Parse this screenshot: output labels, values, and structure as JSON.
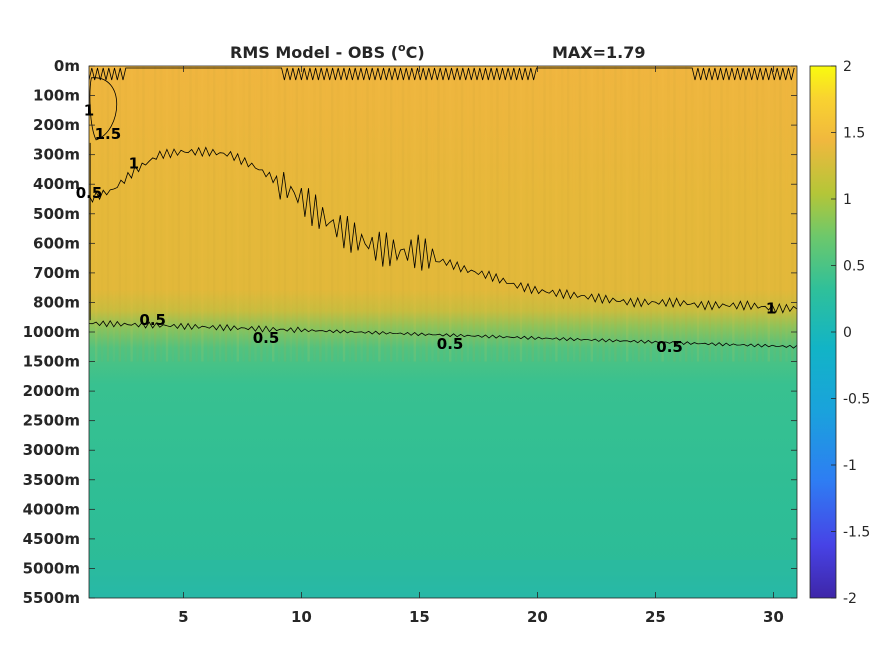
{
  "chart_data": {
    "type": "heatmap",
    "title": "RMS Model - OBS (°C)",
    "title_main": "RMS Model - OBS (",
    "title_sup": "o",
    "title_unit_tail": "C)",
    "max_label": "MAX=1.79",
    "y_ticks": [
      "0m",
      "100m",
      "200m",
      "300m",
      "400m",
      "500m",
      "600m",
      "700m",
      "800m",
      "1000m",
      "1500m",
      "2000m",
      "2500m",
      "3000m",
      "3500m",
      "4000m",
      "4500m",
      "5000m",
      "5500m"
    ],
    "x_ticks": [
      5,
      10,
      15,
      20,
      25,
      30
    ],
    "xlim": [
      1,
      31
    ],
    "colorbar": {
      "min": -2,
      "max": 2,
      "ticks": [
        "2",
        "1.5",
        "1",
        "0.5",
        "0",
        "-0.5",
        "-1",
        "-1.5",
        "-2"
      ],
      "colormap": "parula"
    },
    "contour_levels": [
      0.5,
      1,
      1.5
    ],
    "contour_labels": [
      {
        "text": "0.5",
        "x": 3.7,
        "depth_index": 8.6
      },
      {
        "text": "0.5",
        "x": 8.5,
        "depth_index": 9.2
      },
      {
        "text": "0.5",
        "x": 16.3,
        "depth_index": 9.4
      },
      {
        "text": "0.5",
        "x": 25.6,
        "depth_index": 9.5
      },
      {
        "text": "1.5",
        "x": 1.8,
        "depth_index": 2.3
      },
      {
        "text": "1",
        "x": 1.0,
        "depth_index": 1.5
      },
      {
        "text": "0.5",
        "x": 1.0,
        "depth_index": 4.3
      },
      {
        "text": "1",
        "x": 29.9,
        "depth_index": 8.2
      },
      {
        "text": "1",
        "x": 2.9,
        "depth_index": 3.3
      }
    ],
    "field": {
      "surface_value": 1.35,
      "upper_ocean_value": 1.3,
      "deep_value": 0.35,
      "bottom_value": 0.25
    }
  }
}
